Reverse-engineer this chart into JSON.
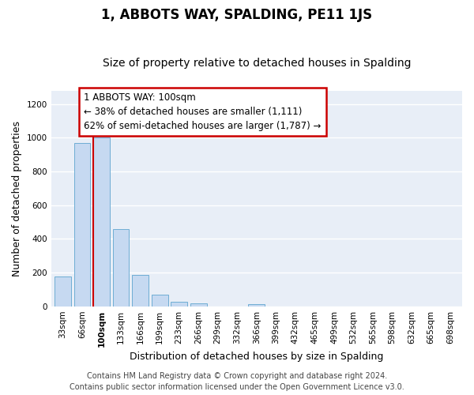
{
  "title": "1, ABBOTS WAY, SPALDING, PE11 1JS",
  "subtitle": "Size of property relative to detached houses in Spalding",
  "xlabel": "Distribution of detached houses by size in Spalding",
  "ylabel": "Number of detached properties",
  "categories": [
    "33sqm",
    "66sqm",
    "100sqm",
    "133sqm",
    "166sqm",
    "199sqm",
    "233sqm",
    "266sqm",
    "299sqm",
    "332sqm",
    "366sqm",
    "399sqm",
    "432sqm",
    "465sqm",
    "499sqm",
    "532sqm",
    "565sqm",
    "598sqm",
    "632sqm",
    "665sqm",
    "698sqm"
  ],
  "values": [
    175,
    970,
    1000,
    460,
    185,
    70,
    25,
    20,
    0,
    0,
    15,
    0,
    0,
    0,
    0,
    0,
    0,
    0,
    0,
    0,
    0
  ],
  "bar_color": "#c6d9f1",
  "bar_edge_color": "#6eadd4",
  "red_line_index": 2,
  "annotation_text": "1 ABBOTS WAY: 100sqm\n← 38% of detached houses are smaller (1,111)\n62% of semi-detached houses are larger (1,787) →",
  "annotation_box_color": "#ffffff",
  "annotation_edge_color": "#cc0000",
  "ylim": [
    0,
    1280
  ],
  "yticks": [
    0,
    200,
    400,
    600,
    800,
    1000,
    1200
  ],
  "footer_line1": "Contains HM Land Registry data © Crown copyright and database right 2024.",
  "footer_line2": "Contains public sector information licensed under the Open Government Licence v3.0.",
  "plot_bg_color": "#e8eef7",
  "fig_bg_color": "#ffffff",
  "grid_color": "#ffffff",
  "title_fontsize": 12,
  "subtitle_fontsize": 10,
  "axis_label_fontsize": 9,
  "tick_fontsize": 7.5,
  "annotation_fontsize": 8.5,
  "footer_fontsize": 7
}
